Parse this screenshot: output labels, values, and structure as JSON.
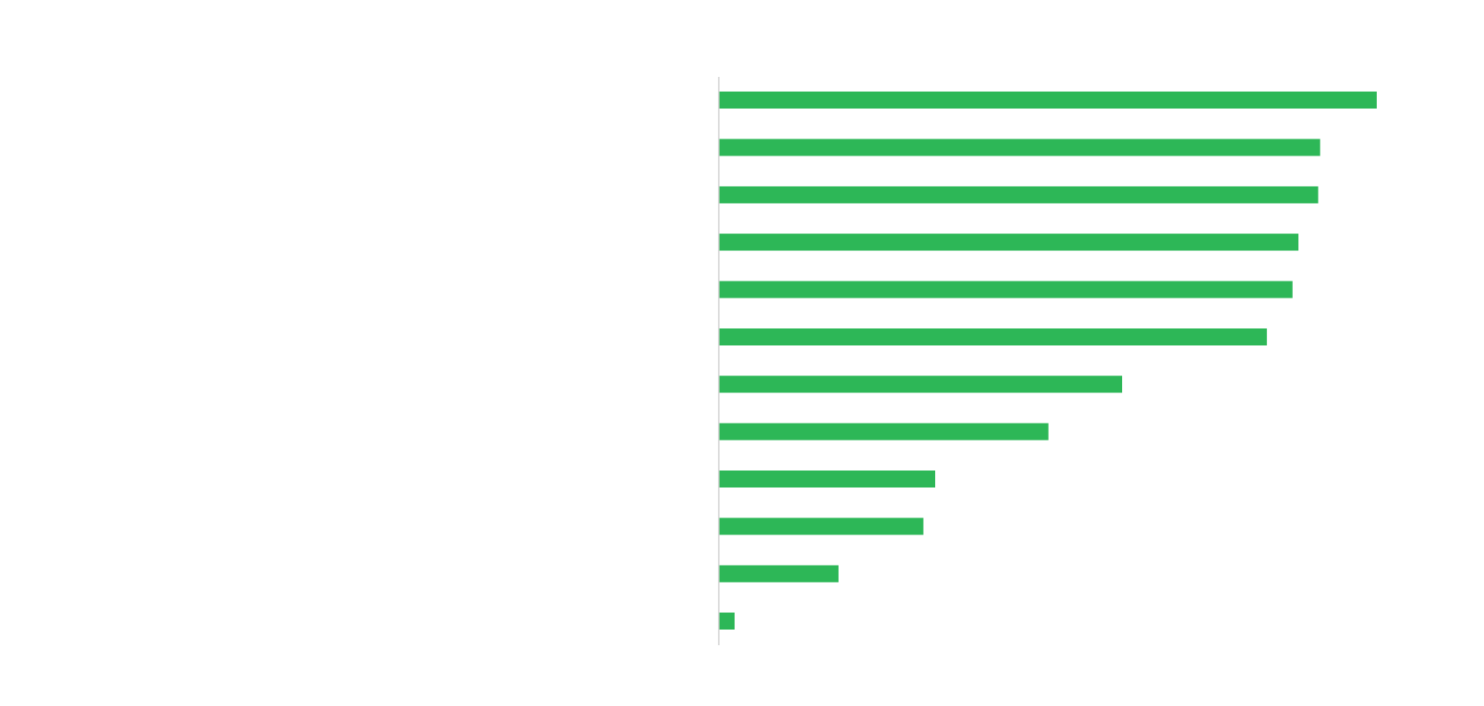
{
  "chart_data": {
    "type": "bar",
    "orientation": "horizontal",
    "title": "",
    "xlabel": "",
    "ylabel": "",
    "grid": false,
    "legend": "none",
    "xlim": [
      0,
      100
    ],
    "values": [
      100,
      91.4,
      91.1,
      88.1,
      87.2,
      83.3,
      61.3,
      50.1,
      32.9,
      31.1,
      18.2,
      2.4
    ],
    "colors": {
      "bar": "#2db757",
      "axis": "#d0d0d0",
      "background": "#ffffff"
    }
  }
}
